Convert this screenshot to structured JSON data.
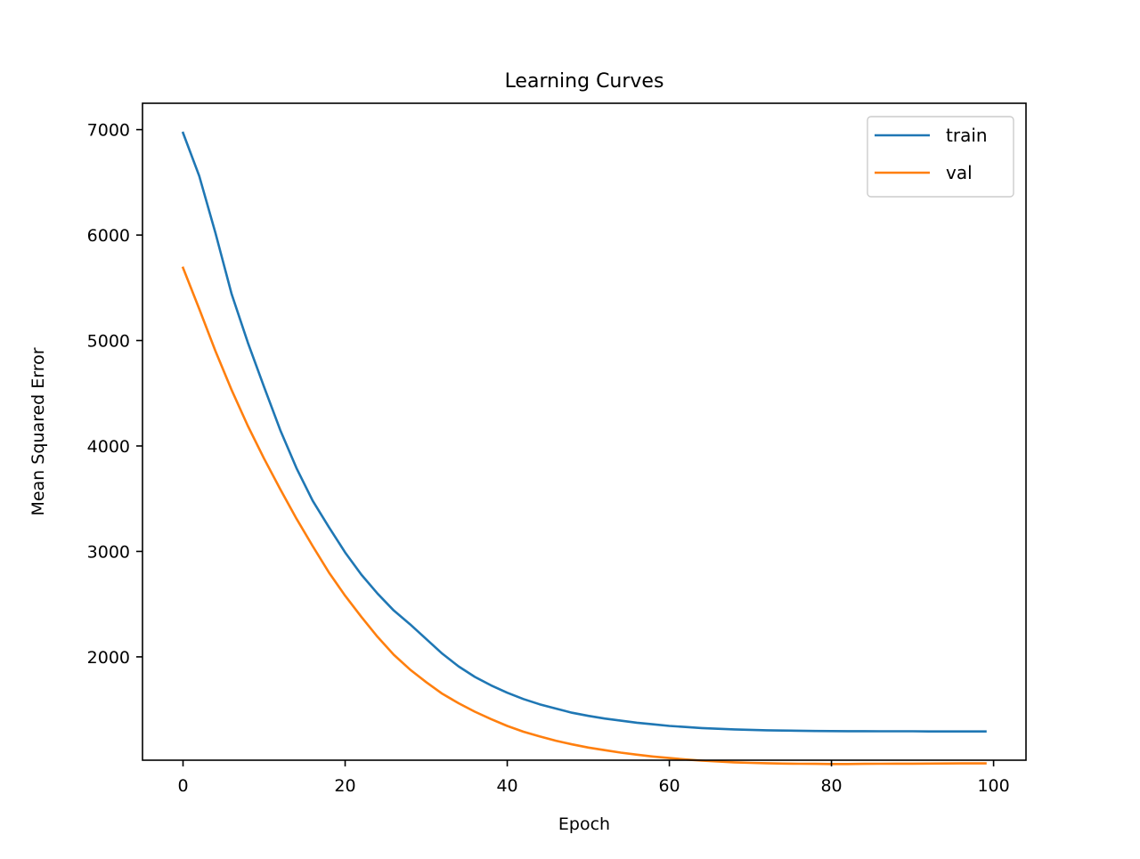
{
  "chart_data": {
    "type": "line",
    "title": "Learning Curves",
    "xlabel": "Epoch",
    "ylabel": "Mean Squared Error",
    "xlim": [
      -5,
      104
    ],
    "ylim": [
      1020,
      7250
    ],
    "x_ticks": [
      0,
      20,
      40,
      60,
      80,
      100
    ],
    "y_ticks": [
      2000,
      3000,
      4000,
      5000,
      6000,
      7000
    ],
    "grid": false,
    "legend_position": "top-right",
    "series": [
      {
        "name": "train",
        "color": "#1f77b4",
        "x": [
          0,
          2,
          4,
          6,
          8,
          10,
          12,
          14,
          16,
          18,
          20,
          22,
          24,
          26,
          28,
          30,
          32,
          34,
          36,
          38,
          40,
          42,
          44,
          46,
          48,
          50,
          52,
          54,
          56,
          58,
          60,
          62,
          64,
          66,
          68,
          70,
          72,
          74,
          76,
          78,
          80,
          82,
          84,
          86,
          88,
          90,
          92,
          94,
          96,
          98,
          99
        ],
        "values": [
          6970,
          6560,
          6020,
          5440,
          4980,
          4560,
          4150,
          3790,
          3480,
          3230,
          2990,
          2780,
          2600,
          2440,
          2310,
          2170,
          2030,
          1910,
          1810,
          1730,
          1660,
          1600,
          1550,
          1510,
          1470,
          1440,
          1415,
          1395,
          1375,
          1360,
          1345,
          1335,
          1325,
          1318,
          1312,
          1308,
          1304,
          1301,
          1299,
          1297,
          1296,
          1295,
          1295,
          1294,
          1294,
          1294,
          1293,
          1293,
          1293,
          1293,
          1293
        ]
      },
      {
        "name": "val",
        "color": "#ff7f0e",
        "x": [
          0,
          2,
          4,
          6,
          8,
          10,
          12,
          14,
          16,
          18,
          20,
          22,
          24,
          26,
          28,
          30,
          32,
          34,
          36,
          38,
          40,
          42,
          44,
          46,
          48,
          50,
          52,
          54,
          56,
          58,
          60,
          62,
          64,
          66,
          68,
          70,
          72,
          74,
          76,
          78,
          80,
          82,
          84,
          86,
          88,
          90,
          92,
          94,
          96,
          98,
          99
        ],
        "values": [
          5690,
          5300,
          4900,
          4530,
          4190,
          3880,
          3590,
          3310,
          3050,
          2800,
          2580,
          2380,
          2190,
          2020,
          1880,
          1760,
          1650,
          1560,
          1480,
          1410,
          1345,
          1290,
          1245,
          1205,
          1170,
          1140,
          1115,
          1092,
          1072,
          1055,
          1040,
          1027,
          1016,
          1007,
          1000,
          995,
          991,
          988,
          986,
          985,
          984,
          984,
          985,
          986,
          987,
          987,
          988,
          989,
          990,
          990,
          990
        ]
      }
    ]
  }
}
